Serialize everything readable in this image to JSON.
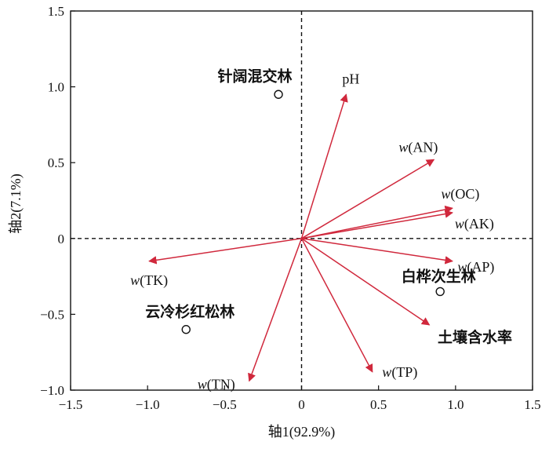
{
  "chart_data": {
    "type": "scatter",
    "subtype": "rda_biplot",
    "xlabel": "轴1(92.9%)",
    "ylabel": "轴2(7.1%)",
    "xlim": [
      -1.5,
      1.5
    ],
    "ylim": [
      -1.0,
      1.5
    ],
    "xticks": [
      -1.5,
      -1.0,
      -0.5,
      0,
      0.5,
      1.0,
      1.5
    ],
    "xtick_labels": [
      "−1.5",
      "−1.0",
      "−0.5",
      "0",
      "0.5",
      "1.0",
      "1.5"
    ],
    "yticks": [
      -1.0,
      -0.5,
      0,
      0.5,
      1.0,
      1.5
    ],
    "ytick_labels": [
      "−1.0",
      "−0.5",
      "0",
      "0.5",
      "1.0",
      "1.5"
    ],
    "reference_lines": [
      "x=0 dashed",
      "y=0 dashed"
    ],
    "arrow_color": "#d0283c",
    "sites": [
      {
        "label": "针阔混交林",
        "x": -0.15,
        "y": 0.95
      },
      {
        "label": "白桦次生林",
        "x": 0.9,
        "y": -0.35
      },
      {
        "label": "云冷杉红松林",
        "x": -0.75,
        "y": -0.6
      }
    ],
    "vectors": [
      {
        "prefix": "",
        "name": "pH",
        "x": 0.29,
        "y": 0.95
      },
      {
        "prefix": "w",
        "name": "(AN)",
        "x": 0.86,
        "y": 0.52
      },
      {
        "prefix": "w",
        "name": "(OC)",
        "x": 0.98,
        "y": 0.2
      },
      {
        "prefix": "w",
        "name": "(AK)",
        "x": 0.98,
        "y": 0.17
      },
      {
        "prefix": "w",
        "name": "(AP)",
        "x": 0.98,
        "y": -0.15
      },
      {
        "prefix": "",
        "name": "土壤含水率",
        "x": 0.83,
        "y": -0.57
      },
      {
        "prefix": "w",
        "name": "(TP)",
        "x": 0.46,
        "y": -0.88
      },
      {
        "prefix": "w",
        "name": "(TN)",
        "x": -0.34,
        "y": -0.94
      },
      {
        "prefix": "w",
        "name": "(TK)",
        "x": -0.99,
        "y": -0.15
      }
    ]
  }
}
